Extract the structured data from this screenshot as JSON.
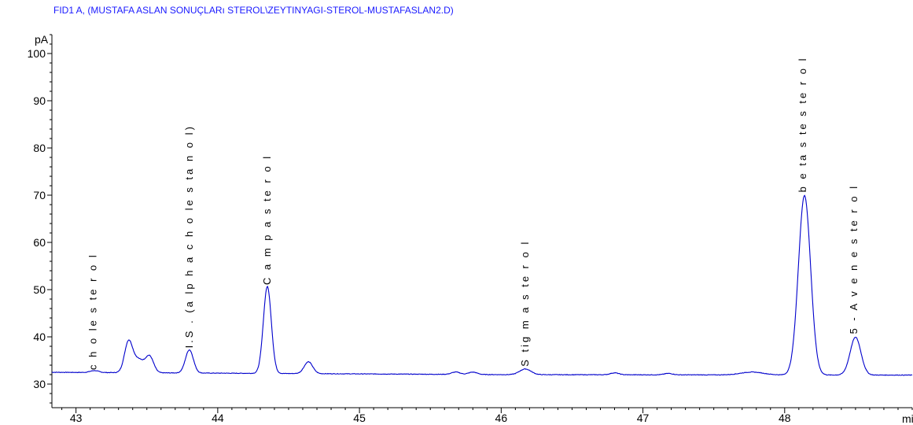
{
  "chart_data": {
    "type": "line",
    "title": "FID1 A,  (MUSTAFA ASLAN SONUÇLARı STEROL\\ZEYTINYAGI-STEROL-MUSTAFASLAN2.D)",
    "xlabel": "min",
    "ylabel": "pA",
    "xlim": [
      42.83,
      48.9
    ],
    "ylim": [
      25,
      104
    ],
    "x_ticks": [
      "43",
      "44",
      "45",
      "46",
      "47",
      "48"
    ],
    "y_ticks": [
      "30",
      "40",
      "50",
      "60",
      "70",
      "80",
      "90",
      "100"
    ],
    "line_color": "#0000cc",
    "axis_color": "#000000",
    "title_color": "#1a1aff",
    "baseline": 32.2,
    "baseline_drift": [
      [
        42.83,
        32.5
      ],
      [
        46.0,
        32.0
      ],
      [
        48.9,
        31.9
      ]
    ],
    "peaks": [
      {
        "rt": 43.13,
        "height": 0.4,
        "width": 0.03
      },
      {
        "rt": 43.37,
        "height": 6.3,
        "width": 0.028
      },
      {
        "rt": 43.44,
        "height": 2.8,
        "width": 0.04
      },
      {
        "rt": 43.52,
        "height": 3.3,
        "width": 0.028
      },
      {
        "rt": 43.8,
        "height": 4.9,
        "width": 0.028
      },
      {
        "rt": 44.35,
        "height": 18.4,
        "width": 0.028
      },
      {
        "rt": 44.64,
        "height": 2.5,
        "width": 0.03
      },
      {
        "rt": 45.68,
        "height": 0.5,
        "width": 0.03
      },
      {
        "rt": 45.8,
        "height": 0.5,
        "width": 0.03
      },
      {
        "rt": 46.17,
        "height": 1.2,
        "width": 0.04
      },
      {
        "rt": 46.8,
        "height": 0.4,
        "width": 0.03
      },
      {
        "rt": 47.18,
        "height": 0.3,
        "width": 0.03
      },
      {
        "rt": 47.77,
        "height": 0.6,
        "width": 0.08
      },
      {
        "rt": 48.14,
        "height": 38.0,
        "width": 0.043
      },
      {
        "rt": 48.5,
        "height": 8.0,
        "width": 0.038
      }
    ],
    "annotations": [
      {
        "text": "c h o le s te r o l",
        "rt": 43.12,
        "y": 33.0
      },
      {
        "text": "I.S . (a lp h a  c h o le s ta n o l)",
        "rt": 43.8,
        "y": 37.6
      },
      {
        "text": "C a m p a s te r o l",
        "rt": 44.35,
        "y": 51.0
      },
      {
        "text": "S tig m a s te r o l",
        "rt": 46.17,
        "y": 33.7
      },
      {
        "text": "b e ta  s te s te r o l",
        "rt": 48.13,
        "y": 70.6
      },
      {
        "text": "5 - A v e n e s te r o l",
        "rt": 48.49,
        "y": 40.6
      }
    ]
  }
}
